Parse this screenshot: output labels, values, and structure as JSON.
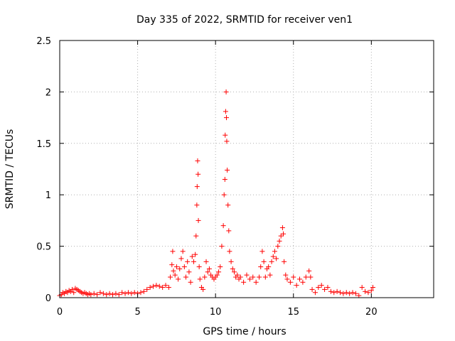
{
  "chart_data": {
    "type": "scatter",
    "title": "Day 335 of 2022, SRMTID for receiver ven1",
    "xlabel": "GPS time / hours",
    "ylabel": "SRMTID / TECUs",
    "xlim": [
      0,
      24
    ],
    "ylim": [
      0,
      2.5
    ],
    "x_ticks": [
      0,
      5,
      10,
      15,
      20
    ],
    "y_ticks": [
      0,
      0.5,
      1,
      1.5,
      2,
      2.5
    ],
    "x_tick_labels": [
      "0",
      "5",
      "10",
      "15",
      "20"
    ],
    "y_tick_labels": [
      "0",
      "0.5",
      "1",
      "1.5",
      "2",
      "2.5"
    ],
    "grid": true,
    "marker": "+",
    "series": [
      {
        "name": "ven1",
        "color": "#ff0000",
        "points": [
          [
            0.0,
            0.02
          ],
          [
            0.1,
            0.03
          ],
          [
            0.2,
            0.05
          ],
          [
            0.3,
            0.04
          ],
          [
            0.4,
            0.06
          ],
          [
            0.5,
            0.05
          ],
          [
            0.6,
            0.07
          ],
          [
            0.7,
            0.06
          ],
          [
            0.8,
            0.08
          ],
          [
            0.9,
            0.05
          ],
          [
            1.0,
            0.09
          ],
          [
            1.1,
            0.08
          ],
          [
            1.2,
            0.07
          ],
          [
            1.3,
            0.06
          ],
          [
            1.4,
            0.05
          ],
          [
            1.5,
            0.04
          ],
          [
            1.6,
            0.05
          ],
          [
            1.7,
            0.04
          ],
          [
            1.8,
            0.03
          ],
          [
            1.9,
            0.04
          ],
          [
            2.0,
            0.03
          ],
          [
            2.2,
            0.04
          ],
          [
            2.4,
            0.03
          ],
          [
            2.6,
            0.05
          ],
          [
            2.8,
            0.04
          ],
          [
            3.0,
            0.03
          ],
          [
            3.2,
            0.04
          ],
          [
            3.4,
            0.03
          ],
          [
            3.6,
            0.04
          ],
          [
            3.8,
            0.03
          ],
          [
            4.0,
            0.05
          ],
          [
            4.2,
            0.04
          ],
          [
            4.4,
            0.05
          ],
          [
            4.6,
            0.04
          ],
          [
            4.8,
            0.05
          ],
          [
            5.0,
            0.04
          ],
          [
            5.2,
            0.05
          ],
          [
            5.4,
            0.06
          ],
          [
            5.6,
            0.08
          ],
          [
            5.8,
            0.1
          ],
          [
            6.0,
            0.11
          ],
          [
            6.2,
            0.12
          ],
          [
            6.4,
            0.11
          ],
          [
            6.6,
            0.1
          ],
          [
            6.8,
            0.12
          ],
          [
            7.0,
            0.1
          ],
          [
            7.1,
            0.2
          ],
          [
            7.2,
            0.32
          ],
          [
            7.25,
            0.45
          ],
          [
            7.3,
            0.26
          ],
          [
            7.4,
            0.22
          ],
          [
            7.5,
            0.3
          ],
          [
            7.6,
            0.18
          ],
          [
            7.7,
            0.28
          ],
          [
            7.8,
            0.38
          ],
          [
            7.9,
            0.45
          ],
          [
            8.0,
            0.3
          ],
          [
            8.1,
            0.2
          ],
          [
            8.2,
            0.35
          ],
          [
            8.3,
            0.25
          ],
          [
            8.4,
            0.15
          ],
          [
            8.5,
            0.4
          ],
          [
            8.6,
            0.35
          ],
          [
            8.7,
            0.42
          ],
          [
            8.75,
            0.6
          ],
          [
            8.8,
            0.9
          ],
          [
            8.82,
            1.08
          ],
          [
            8.85,
            1.33
          ],
          [
            8.88,
            1.2
          ],
          [
            8.9,
            0.75
          ],
          [
            8.95,
            0.3
          ],
          [
            9.0,
            0.18
          ],
          [
            9.1,
            0.1
          ],
          [
            9.2,
            0.08
          ],
          [
            9.3,
            0.2
          ],
          [
            9.4,
            0.35
          ],
          [
            9.5,
            0.25
          ],
          [
            9.6,
            0.28
          ],
          [
            9.7,
            0.22
          ],
          [
            9.8,
            0.2
          ],
          [
            9.9,
            0.18
          ],
          [
            10.0,
            0.2
          ],
          [
            10.1,
            0.22
          ],
          [
            10.2,
            0.25
          ],
          [
            10.3,
            0.3
          ],
          [
            10.4,
            0.5
          ],
          [
            10.5,
            0.7
          ],
          [
            10.55,
            1.0
          ],
          [
            10.6,
            1.15
          ],
          [
            10.62,
            1.58
          ],
          [
            10.65,
            1.81
          ],
          [
            10.68,
            2.0
          ],
          [
            10.7,
            1.75
          ],
          [
            10.72,
            1.52
          ],
          [
            10.75,
            1.24
          ],
          [
            10.8,
            0.9
          ],
          [
            10.85,
            0.65
          ],
          [
            10.9,
            0.45
          ],
          [
            11.0,
            0.35
          ],
          [
            11.1,
            0.28
          ],
          [
            11.2,
            0.25
          ],
          [
            11.3,
            0.2
          ],
          [
            11.4,
            0.22
          ],
          [
            11.5,
            0.18
          ],
          [
            11.6,
            0.2
          ],
          [
            11.8,
            0.15
          ],
          [
            12.0,
            0.22
          ],
          [
            12.2,
            0.18
          ],
          [
            12.4,
            0.2
          ],
          [
            12.6,
            0.15
          ],
          [
            12.8,
            0.2
          ],
          [
            12.9,
            0.3
          ],
          [
            13.0,
            0.45
          ],
          [
            13.1,
            0.35
          ],
          [
            13.2,
            0.2
          ],
          [
            13.3,
            0.28
          ],
          [
            13.4,
            0.3
          ],
          [
            13.5,
            0.22
          ],
          [
            13.6,
            0.35
          ],
          [
            13.7,
            0.4
          ],
          [
            13.8,
            0.45
          ],
          [
            13.9,
            0.38
          ],
          [
            14.0,
            0.5
          ],
          [
            14.1,
            0.55
          ],
          [
            14.2,
            0.6
          ],
          [
            14.3,
            0.68
          ],
          [
            14.35,
            0.62
          ],
          [
            14.4,
            0.35
          ],
          [
            14.5,
            0.22
          ],
          [
            14.6,
            0.18
          ],
          [
            14.8,
            0.15
          ],
          [
            15.0,
            0.2
          ],
          [
            15.2,
            0.12
          ],
          [
            15.4,
            0.18
          ],
          [
            15.6,
            0.15
          ],
          [
            15.8,
            0.2
          ],
          [
            16.0,
            0.26
          ],
          [
            16.1,
            0.2
          ],
          [
            16.2,
            0.08
          ],
          [
            16.4,
            0.05
          ],
          [
            16.6,
            0.1
          ],
          [
            16.8,
            0.12
          ],
          [
            17.0,
            0.08
          ],
          [
            17.2,
            0.1
          ],
          [
            17.4,
            0.06
          ],
          [
            17.6,
            0.05
          ],
          [
            17.8,
            0.06
          ],
          [
            18.0,
            0.05
          ],
          [
            18.2,
            0.04
          ],
          [
            18.4,
            0.05
          ],
          [
            18.6,
            0.04
          ],
          [
            18.8,
            0.05
          ],
          [
            19.0,
            0.04
          ],
          [
            19.2,
            0.02
          ],
          [
            19.4,
            0.1
          ],
          [
            19.6,
            0.06
          ],
          [
            19.8,
            0.05
          ],
          [
            20.0,
            0.07
          ],
          [
            20.1,
            0.1
          ]
        ]
      }
    ]
  }
}
